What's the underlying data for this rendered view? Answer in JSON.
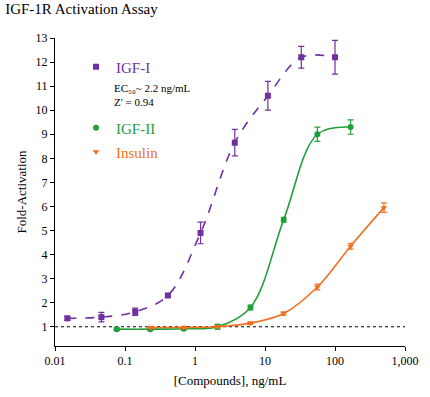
{
  "chart_data": {
    "type": "scatter",
    "title": "IGF-1R Activation Assay",
    "x_label": "[Compounds], ng/mL",
    "y_label": "Fold-Activation",
    "log": "x",
    "grid": false,
    "legend": "upper left",
    "xlim": [
      0.01,
      1000
    ],
    "ylim": [
      0.2,
      13
    ],
    "xticks": [
      0.01,
      0.1,
      1,
      10,
      100,
      {
        "value": 1000,
        "label": "1,000"
      }
    ],
    "yticks": [
      1,
      2,
      3,
      4,
      5,
      6,
      7,
      8,
      9,
      10,
      11,
      12,
      13
    ],
    "reference_line": {
      "y": 1,
      "line_style": "dotted"
    },
    "annotations": [
      "EC₅₀~ 2.2 ng/mL",
      "Z' = 0.94"
    ],
    "series": [
      {
        "name": "IGF-I",
        "color": "#7030a0",
        "marker": "square",
        "line_style": "dashed",
        "x": [
          0.015,
          0.046,
          0.14,
          0.41,
          1.2,
          3.7,
          11,
          33,
          100
        ],
        "values": [
          1.35,
          1.4,
          1.62,
          2.3,
          4.9,
          8.65,
          10.6,
          12.2,
          12.2
        ],
        "errors": [
          0.08,
          0.2,
          0.15,
          0.08,
          0.45,
          0.55,
          0.6,
          0.45,
          0.7
        ]
      },
      {
        "name": "IGF-II",
        "color": "#1f9e3a",
        "marker": "circle",
        "line_style": "solid",
        "x": [
          0.076,
          0.23,
          0.69,
          2.1,
          6.2,
          18.5,
          56,
          167
        ],
        "values": [
          0.9,
          0.9,
          0.92,
          1.0,
          1.8,
          5.45,
          9.0,
          9.3
        ],
        "errors": [
          0.05,
          0.05,
          0.05,
          0.1,
          0.1,
          0.1,
          0.3,
          0.3
        ]
      },
      {
        "name": "Insulin",
        "color": "#f07020",
        "marker": "triangle-down",
        "line_style": "solid",
        "x": [
          0.23,
          0.69,
          2.1,
          6.2,
          18.5,
          56,
          167,
          500
        ],
        "values": [
          0.97,
          0.97,
          1.0,
          1.15,
          1.55,
          2.65,
          4.35,
          5.95
        ],
        "errors": [
          0.05,
          0.05,
          0.05,
          0.05,
          0.07,
          0.12,
          0.12,
          0.2
        ]
      }
    ]
  }
}
